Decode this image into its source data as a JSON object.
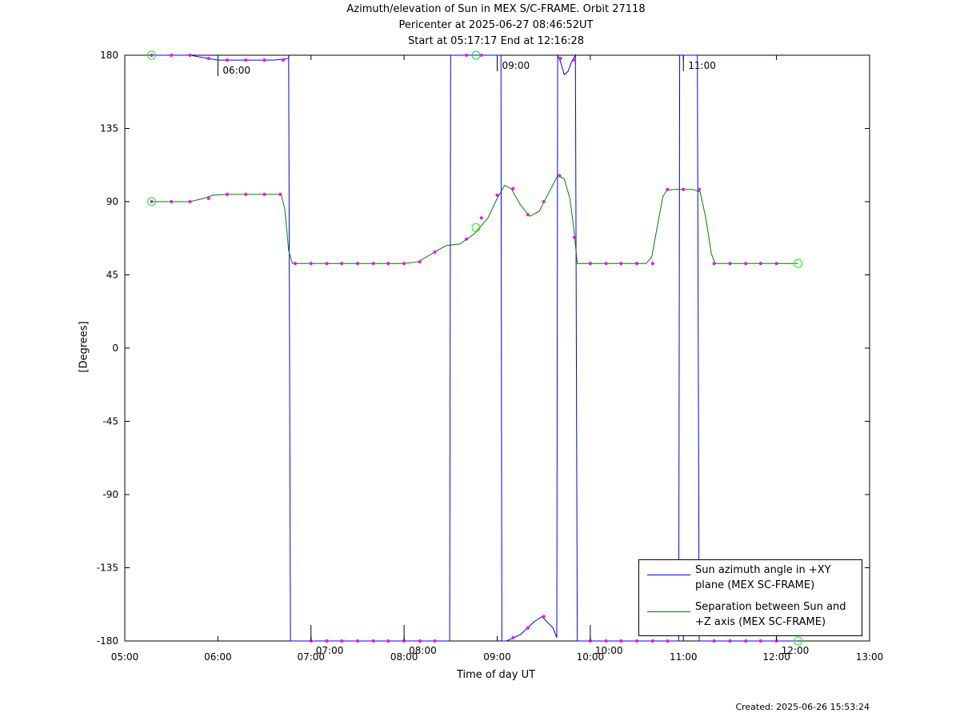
{
  "title_lines": [
    "Azimuth/elevation of Sun in MEX S/C-FRAME.  Orbit 27118",
    "Pericenter at 2025-06-27 08:46:52UT",
    "Start at 05:17:17 End at 12:16:28"
  ],
  "created": "Created: 2025-06-26 15:53:24",
  "chart_data": {
    "type": "line",
    "xlabel": "Time of day UT",
    "ylabel": "[Degrees]",
    "xlim": [
      5.0,
      13.0
    ],
    "ylim": [
      -180,
      180
    ],
    "x_ticks": [
      5,
      6,
      7,
      8,
      9,
      10,
      11,
      12,
      13
    ],
    "x_tick_labels": [
      "05:00",
      "06:00",
      "07:00",
      "08:00",
      "09:00",
      "10:00",
      "11:00",
      "12:00",
      "13:00"
    ],
    "y_ticks": [
      180,
      135,
      90,
      45,
      0,
      -45,
      -90,
      -135,
      -180
    ],
    "y_tick_labels": [
      "180",
      "135",
      "90",
      "45",
      "0",
      "-45",
      "-90",
      "-135",
      "-180"
    ],
    "grid": false,
    "legend_position": "bottom-right",
    "series": [
      {
        "name": "Sun azimuth angle in +XY plane (MEX SC-FRAME)",
        "color": "#0000ff",
        "segments": [
          [
            [
              5.288,
              180
            ],
            [
              5.5,
              180
            ],
            [
              5.7,
              180
            ],
            [
              5.9,
              178
            ],
            [
              6.0,
              177
            ],
            [
              6.2,
              177
            ],
            [
              6.4,
              177
            ],
            [
              6.6,
              177
            ],
            [
              6.76,
              178
            ],
            [
              6.76,
              180
            ]
          ],
          [
            [
              6.76,
              180
            ],
            [
              6.78,
              -180
            ],
            [
              8.49,
              -180
            ],
            [
              8.5,
              180
            ]
          ],
          [
            [
              8.5,
              180
            ],
            [
              9.04,
              180
            ],
            [
              9.05,
              -180
            ],
            [
              9.1,
              -180
            ],
            [
              9.25,
              -176
            ],
            [
              9.4,
              -168
            ],
            [
              9.48,
              -165
            ],
            [
              9.6,
              -172
            ],
            [
              9.64,
              -178
            ],
            [
              9.65,
              180
            ]
          ],
          [
            [
              9.65,
              180
            ],
            [
              9.68,
              176
            ],
            [
              9.72,
              168
            ],
            [
              9.76,
              170
            ],
            [
              9.8,
              176
            ],
            [
              9.84,
              180
            ],
            [
              9.86,
              -180
            ],
            [
              10.95,
              -180
            ],
            [
              10.96,
              180
            ],
            [
              11.15,
              180
            ],
            [
              11.17,
              -180
            ],
            [
              12.232,
              -180
            ]
          ]
        ]
      },
      {
        "name": "Separation between Sun and +Z axis (MEX SC-FRAME)",
        "color": "#007f00",
        "points": [
          [
            5.288,
            90
          ],
          [
            5.5,
            90
          ],
          [
            5.7,
            90
          ],
          [
            5.85,
            92
          ],
          [
            5.95,
            94
          ],
          [
            6.1,
            94.5
          ],
          [
            6.3,
            94.5
          ],
          [
            6.5,
            94.5
          ],
          [
            6.68,
            94.5
          ],
          [
            6.72,
            85
          ],
          [
            6.76,
            60
          ],
          [
            6.8,
            52
          ],
          [
            7.0,
            52
          ],
          [
            7.5,
            52
          ],
          [
            8.0,
            52
          ],
          [
            8.15,
            53
          ],
          [
            8.3,
            58
          ],
          [
            8.45,
            63
          ],
          [
            8.6,
            64
          ],
          [
            8.75,
            70
          ],
          [
            8.9,
            80
          ],
          [
            9.0,
            92
          ],
          [
            9.08,
            100
          ],
          [
            9.15,
            98
          ],
          [
            9.25,
            88
          ],
          [
            9.35,
            81
          ],
          [
            9.45,
            84
          ],
          [
            9.55,
            95
          ],
          [
            9.65,
            106
          ],
          [
            9.72,
            104
          ],
          [
            9.78,
            92
          ],
          [
            9.82,
            75
          ],
          [
            9.86,
            52
          ],
          [
            10.0,
            52
          ],
          [
            10.3,
            52
          ],
          [
            10.6,
            52
          ],
          [
            10.66,
            56
          ],
          [
            10.72,
            75
          ],
          [
            10.78,
            93
          ],
          [
            10.82,
            97
          ],
          [
            10.9,
            97.5
          ],
          [
            11.0,
            97.5
          ],
          [
            11.1,
            97.5
          ],
          [
            11.18,
            96
          ],
          [
            11.24,
            80
          ],
          [
            11.3,
            58
          ],
          [
            11.34,
            52
          ],
          [
            11.6,
            52
          ],
          [
            12.0,
            52
          ],
          [
            12.232,
            52
          ]
        ]
      }
    ],
    "markers_azimuth": [
      [
        5.288,
        180
      ],
      [
        5.5,
        180
      ],
      [
        5.7,
        180
      ],
      [
        5.9,
        178
      ],
      [
        6.1,
        177
      ],
      [
        6.3,
        177
      ],
      [
        6.5,
        177
      ],
      [
        6.7,
        177
      ],
      [
        7.0,
        -180
      ],
      [
        7.17,
        -180
      ],
      [
        7.33,
        -180
      ],
      [
        7.5,
        -180
      ],
      [
        7.67,
        -180
      ],
      [
        7.83,
        -180
      ],
      [
        8.0,
        -180
      ],
      [
        8.17,
        -180
      ],
      [
        8.33,
        -180
      ],
      [
        8.67,
        180
      ],
      [
        8.83,
        180
      ],
      [
        9.17,
        -178
      ],
      [
        9.33,
        -172
      ],
      [
        9.5,
        -165
      ],
      [
        9.68,
        178
      ],
      [
        9.83,
        177
      ],
      [
        10.0,
        -180
      ],
      [
        10.17,
        -180
      ],
      [
        10.33,
        -180
      ],
      [
        10.5,
        -180
      ],
      [
        10.67,
        -180
      ],
      [
        10.83,
        -180
      ],
      [
        11.33,
        -180
      ],
      [
        11.5,
        -180
      ],
      [
        11.67,
        -180
      ],
      [
        11.83,
        -180
      ],
      [
        12.0,
        -180
      ]
    ],
    "markers_separation": [
      [
        5.288,
        90
      ],
      [
        5.5,
        90
      ],
      [
        5.7,
        90
      ],
      [
        5.9,
        92
      ],
      [
        6.1,
        94.5
      ],
      [
        6.3,
        94.5
      ],
      [
        6.5,
        94.5
      ],
      [
        6.67,
        94.5
      ],
      [
        6.83,
        52
      ],
      [
        7.0,
        52
      ],
      [
        7.17,
        52
      ],
      [
        7.33,
        52
      ],
      [
        7.5,
        52
      ],
      [
        7.67,
        52
      ],
      [
        7.83,
        52
      ],
      [
        8.0,
        52
      ],
      [
        8.17,
        53
      ],
      [
        8.33,
        59
      ],
      [
        8.67,
        67
      ],
      [
        8.83,
        80
      ],
      [
        9.0,
        94
      ],
      [
        9.17,
        98
      ],
      [
        9.33,
        82
      ],
      [
        9.5,
        90
      ],
      [
        9.67,
        106
      ],
      [
        9.83,
        68
      ],
      [
        10.0,
        52
      ],
      [
        10.17,
        52
      ],
      [
        10.33,
        52
      ],
      [
        10.5,
        52
      ],
      [
        10.67,
        52
      ],
      [
        10.83,
        97.5
      ],
      [
        11.0,
        97.5
      ],
      [
        11.17,
        97.5
      ],
      [
        11.33,
        52
      ],
      [
        11.5,
        52
      ],
      [
        11.67,
        52
      ],
      [
        11.83,
        52
      ],
      [
        12.0,
        52
      ]
    ],
    "start_end_markers": [
      [
        5.288,
        180
      ],
      [
        5.288,
        90
      ],
      [
        8.773,
        180
      ],
      [
        8.773,
        74
      ],
      [
        12.232,
        52
      ],
      [
        12.232,
        -180
      ]
    ],
    "hour_ticks": [
      {
        "x": 6.0,
        "y": 177,
        "label": "06:00",
        "dir": "below"
      },
      {
        "x": 7.0,
        "y": -180,
        "label": "07:00",
        "dir": "above"
      },
      {
        "x": 8.0,
        "y": -180,
        "label": "08:00",
        "dir": "above"
      },
      {
        "x": 9.0,
        "y": 180,
        "label": "09:00",
        "dir": "below"
      },
      {
        "x": 10.0,
        "y": -180,
        "label": "10:00",
        "dir": "above"
      },
      {
        "x": 11.0,
        "y": 180,
        "label": "11:00",
        "dir": "below"
      },
      {
        "x": 12.0,
        "y": -180,
        "label": "12:00",
        "dir": "above"
      }
    ]
  },
  "colors": {
    "azimuth": "#0000ff",
    "separation": "#007f00",
    "marker": "#ff00ff",
    "start_end": "#00ff00"
  }
}
